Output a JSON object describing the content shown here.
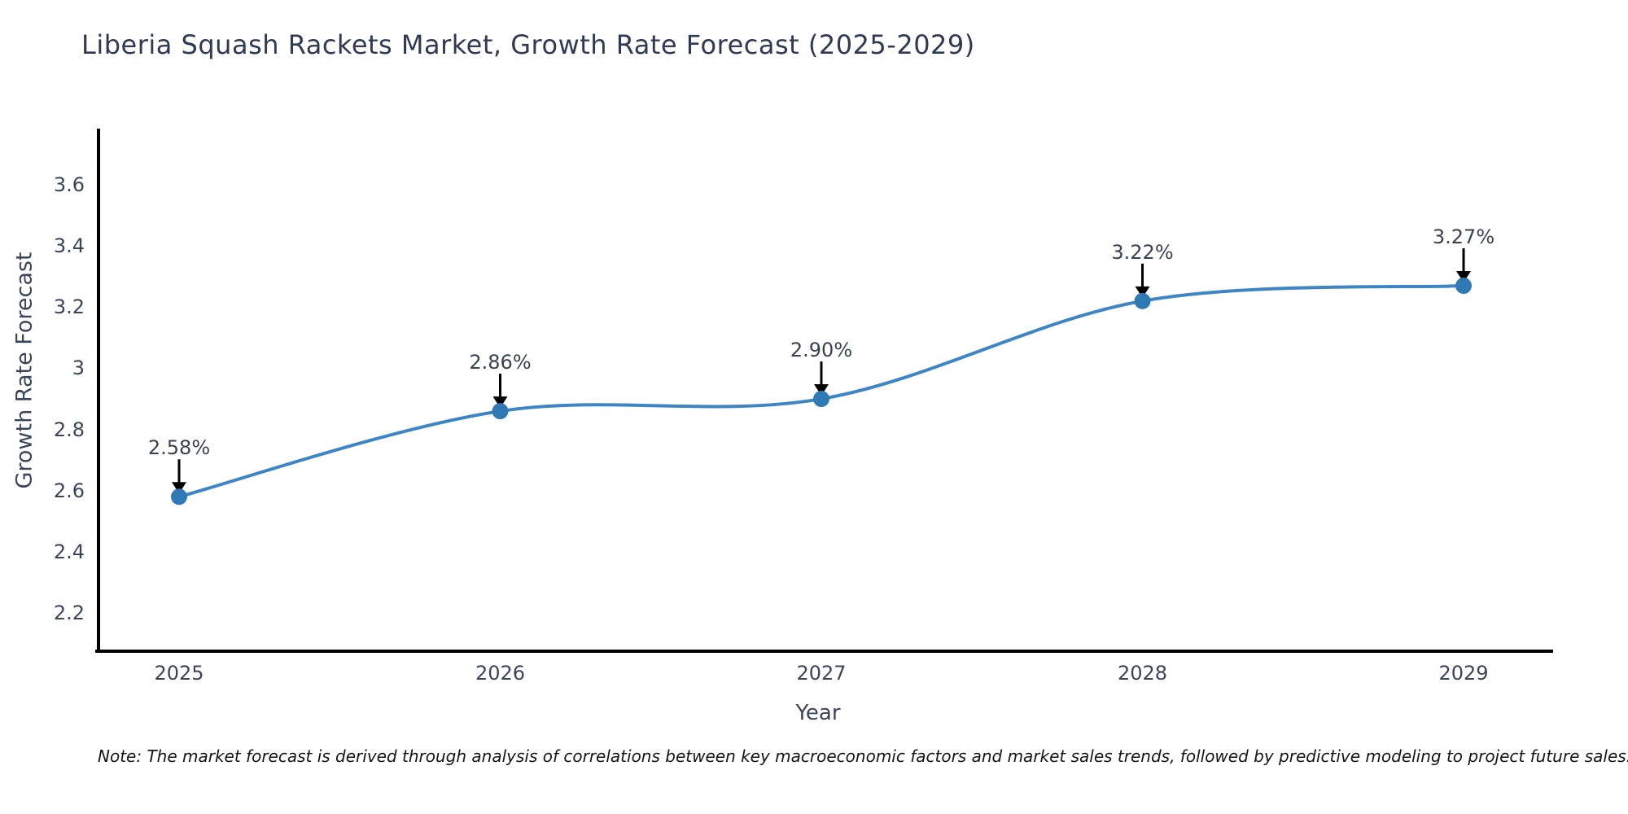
{
  "note": "Note: The market forecast is derived through analysis of correlations between key macroeconomic factors and market sales trends, followed by predictive modeling to project future sales.",
  "chart_data": {
    "type": "line",
    "title": "Liberia Squash Rackets Market, Growth Rate Forecast (2025-2029)",
    "xlabel": "Year",
    "ylabel": "Growth Rate Forecast",
    "x": [
      2025,
      2026,
      2027,
      2028,
      2029
    ],
    "x_labels": [
      "2025",
      "2026",
      "2027",
      "2028",
      "2029"
    ],
    "y": [
      2.58,
      2.86,
      2.9,
      3.22,
      3.27
    ],
    "point_labels": [
      "2.58%",
      "2.86%",
      "2.90%",
      "3.22%",
      "3.27%"
    ],
    "ytick_values": [
      2.2,
      2.4,
      2.6,
      2.8,
      3.0,
      3.2,
      3.4,
      3.6
    ],
    "ytick_labels": [
      "2.2",
      "2.4",
      "2.6",
      "2.8",
      "3",
      "3.2",
      "3.4",
      "3.6"
    ],
    "ylim": [
      2.075,
      3.78
    ],
    "grid": false,
    "legend": "none",
    "line_color": "#3d85c4",
    "marker_color": "#2f79b5",
    "arrow_color": "#000000",
    "spine_color": "#000000"
  }
}
